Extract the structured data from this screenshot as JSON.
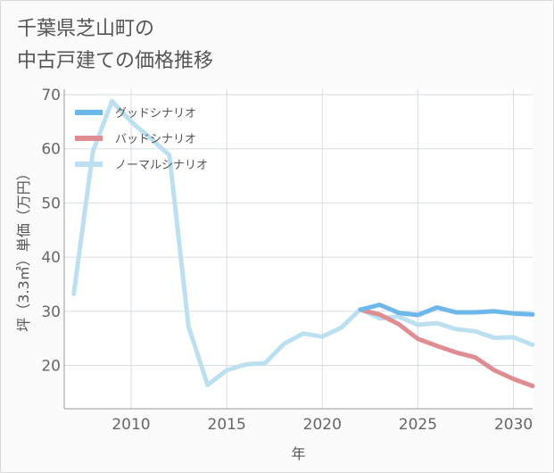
{
  "title_lines": [
    "千葉県芝山町の",
    "中古戸建ての価格推移"
  ],
  "chart_data": {
    "type": "line",
    "xlabel": "年",
    "ylabel": "坪（3.3㎡）単価（万円）",
    "xlim": [
      2006.5,
      2031
    ],
    "ylim": [
      12,
      71
    ],
    "x_ticks": [
      2010,
      2015,
      2020,
      2025,
      2030
    ],
    "y_ticks": [
      20,
      30,
      40,
      50,
      60,
      70
    ],
    "grid": true,
    "legend_position": "top-left",
    "series": [
      {
        "name": "グッドシナリオ",
        "color": "#6cb8ea",
        "x": [
          2022,
          2023,
          2024,
          2025,
          2026,
          2027,
          2028,
          2029,
          2030,
          2031
        ],
        "y": [
          30.3,
          31.2,
          29.7,
          29.3,
          30.7,
          29.8,
          29.8,
          30.0,
          29.6,
          29.4
        ]
      },
      {
        "name": "バッドシナリオ",
        "color": "#e08c93",
        "x": [
          2022,
          2023,
          2024,
          2025,
          2026,
          2027,
          2028,
          2029,
          2030,
          2031
        ],
        "y": [
          30.3,
          29.4,
          27.6,
          24.9,
          23.6,
          22.4,
          21.5,
          19.1,
          17.5,
          16.2
        ]
      },
      {
        "name": "ノーマルシナリオ",
        "color": "#bde0f0",
        "x": [
          2007,
          2008,
          2009,
          2010,
          2011,
          2012,
          2013,
          2014,
          2015,
          2016,
          2017,
          2018,
          2019,
          2020,
          2021,
          2022,
          2023,
          2024,
          2025,
          2026,
          2027,
          2028,
          2029,
          2030,
          2031
        ],
        "y": [
          33.2,
          59.5,
          68.8,
          65.0,
          62.0,
          58.8,
          27.2,
          16.4,
          19.1,
          20.2,
          20.4,
          24.0,
          25.9,
          25.3,
          27.0,
          30.4,
          28.7,
          29.0,
          27.5,
          27.8,
          26.7,
          26.3,
          25.1,
          25.2,
          23.8
        ]
      }
    ]
  }
}
